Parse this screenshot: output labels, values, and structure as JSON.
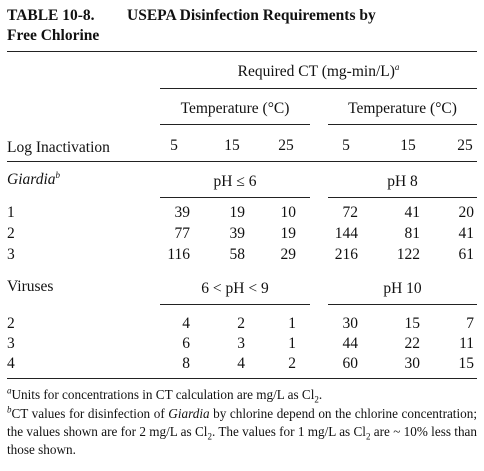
{
  "title": {
    "number": "TABLE 10-8.",
    "line1": "USEPA Disinfection Requirements by",
    "line2": "Free Chlorine"
  },
  "header": {
    "required_ct": "Required CT (mg-min/L)",
    "required_ct_note": "a",
    "temperature_label": "Temperature (°C)",
    "log_inactivation": "Log Inactivation",
    "temps": [
      "5",
      "15",
      "25",
      "5",
      "15",
      "25"
    ]
  },
  "giardia": {
    "label": "Giardia",
    "note": "b",
    "ph_left": "pH ≤ 6",
    "ph_right": "pH 8",
    "rows": [
      {
        "log": "1",
        "values": [
          "39",
          "19",
          "10",
          "72",
          "41",
          "20"
        ]
      },
      {
        "log": "2",
        "values": [
          "77",
          "39",
          "19",
          "144",
          "81",
          "41"
        ]
      },
      {
        "log": "3",
        "values": [
          "116",
          "58",
          "29",
          "216",
          "122",
          "61"
        ]
      }
    ]
  },
  "viruses": {
    "label": "Viruses",
    "ph_left": "6 < pH < 9",
    "ph_right": "pH 10",
    "rows": [
      {
        "log": "2",
        "values": [
          "4",
          "2",
          "1",
          "30",
          "15",
          "7"
        ]
      },
      {
        "log": "3",
        "values": [
          "6",
          "3",
          "1",
          "44",
          "22",
          "11"
        ]
      },
      {
        "log": "4",
        "values": [
          "8",
          "4",
          "2",
          "60",
          "30",
          "15"
        ]
      }
    ]
  },
  "footnotes": {
    "a_mark": "a",
    "a_text": "Units for concentrations in CT calculation are mg/L as Cl",
    "a_sub": "2",
    "a_end": ".",
    "b_mark": "b",
    "b_text1": "CT values for disinfection of ",
    "b_ital": "Giardia",
    "b_text2": " by chlorine depend on the chlorine concentration; the values shown are for 2 mg/L as Cl",
    "b_sub1": "2",
    "b_text3": ". The values for 1 mg/L as Cl",
    "b_sub2": "2",
    "b_text4": " are ~ 10% less than those shown."
  }
}
